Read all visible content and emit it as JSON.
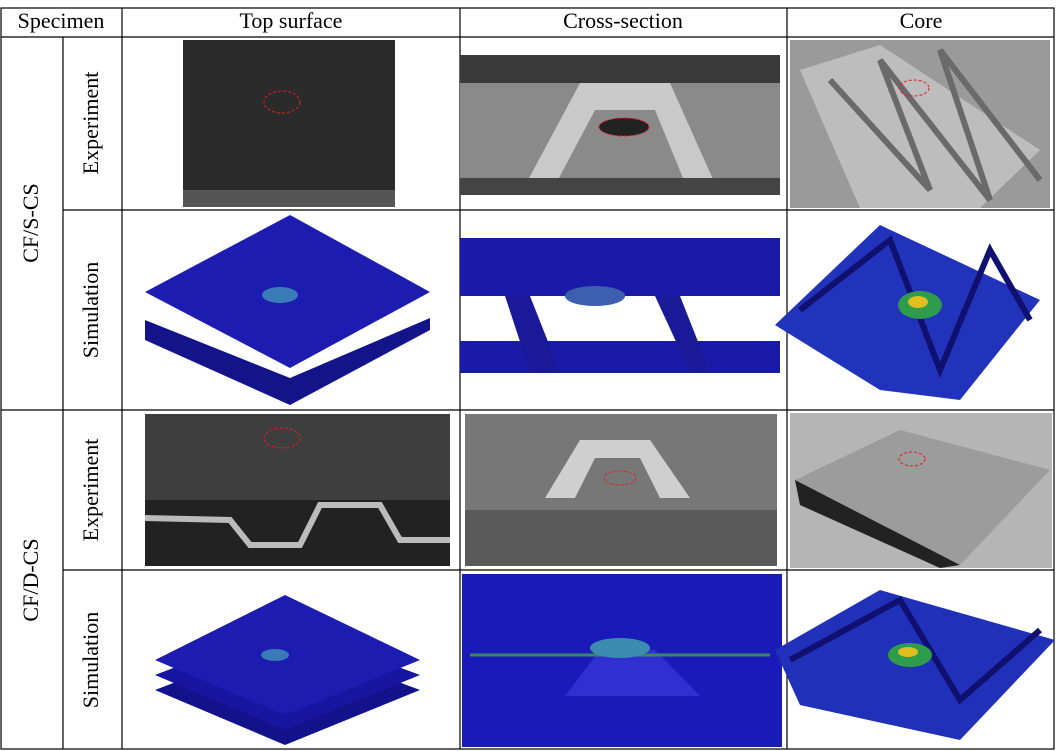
{
  "table": {
    "header": [
      "Specimen",
      "Top surface",
      "Cross-section",
      "Core"
    ],
    "rows": [
      {
        "specimen": "CF/S-CS",
        "modes": [
          "Experiment",
          "Simulation"
        ]
      },
      {
        "specimen": "CF/D-CS",
        "modes": [
          "Experiment",
          "Simulation"
        ]
      }
    ]
  }
}
